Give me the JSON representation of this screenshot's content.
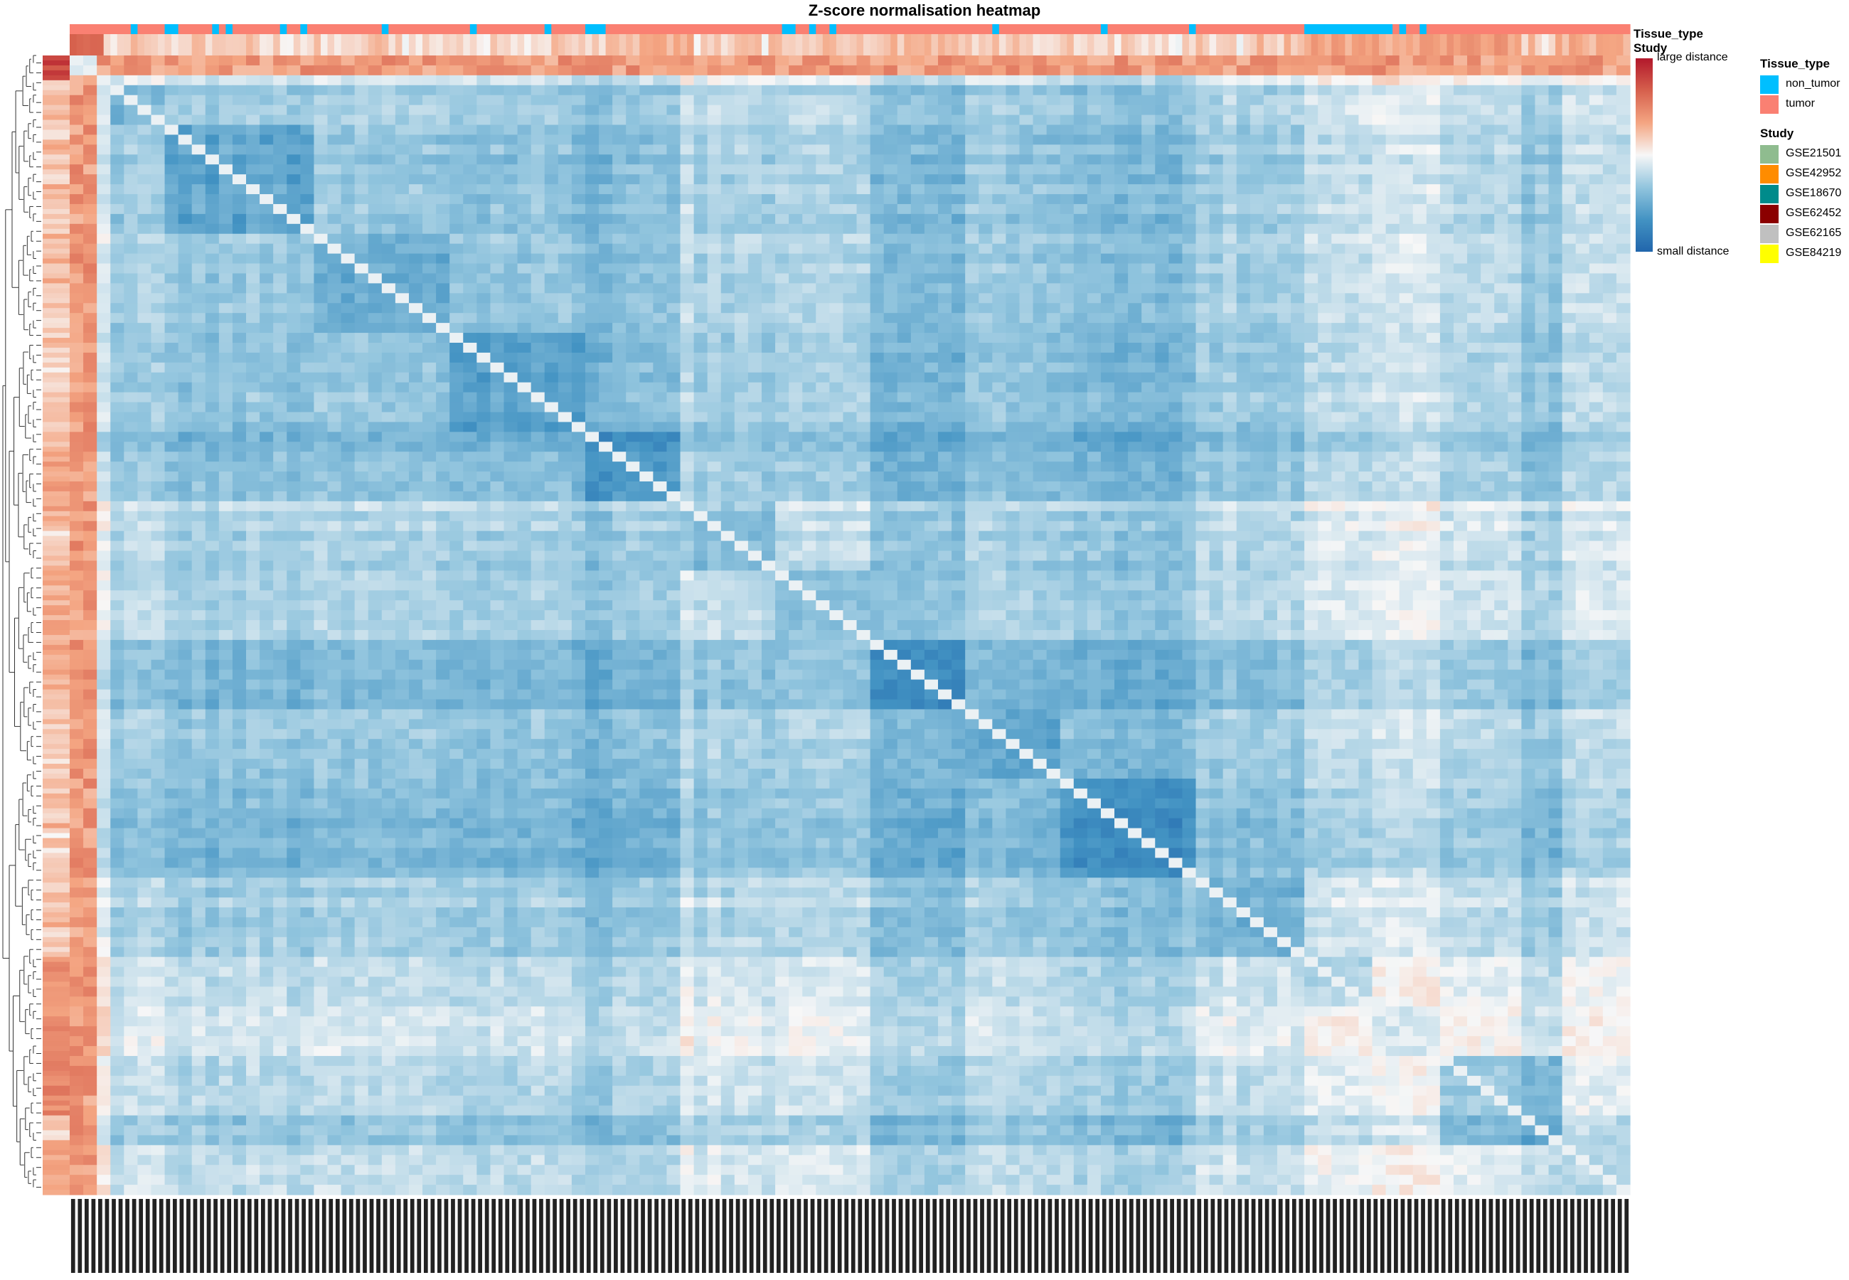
{
  "chart_data": {
    "type": "heatmap",
    "title": "Z-score normalisation heatmap",
    "annotation_tracks": [
      "Tissue_type",
      "Study"
    ],
    "colorbar": {
      "high_label": "large distance",
      "low_label": "small distance",
      "colors": [
        "#2166ac",
        "#4393c3",
        "#92c5de",
        "#f7f7f7",
        "#f4a582",
        "#d6604d",
        "#b2182b"
      ]
    },
    "legends": [
      {
        "title": "Tissue_type",
        "items": [
          {
            "label": "non_tumor",
            "color": "#00bfff"
          },
          {
            "label": "tumor",
            "color": "#fa8072"
          }
        ]
      },
      {
        "title": "Study",
        "items": [
          {
            "label": "GSE21501",
            "color": "#8fbc8f"
          },
          {
            "label": "GSE42952",
            "color": "#ff8c00"
          },
          {
            "label": "GSE18670",
            "color": "#008b8b"
          },
          {
            "label": "GSE62452",
            "color": "#8b0000"
          },
          {
            "label": "GSE62165",
            "color": "#c0c0c0"
          },
          {
            "label": "GSE84219",
            "color": "#ffff00"
          }
        ]
      }
    ],
    "n_samples": 230,
    "block_boundaries": [
      0.02,
      0.06,
      0.15,
      0.24,
      0.33,
      0.39,
      0.45,
      0.51,
      0.57,
      0.63,
      0.72,
      0.79,
      0.83,
      0.88,
      0.95,
      1.0
    ]
  }
}
